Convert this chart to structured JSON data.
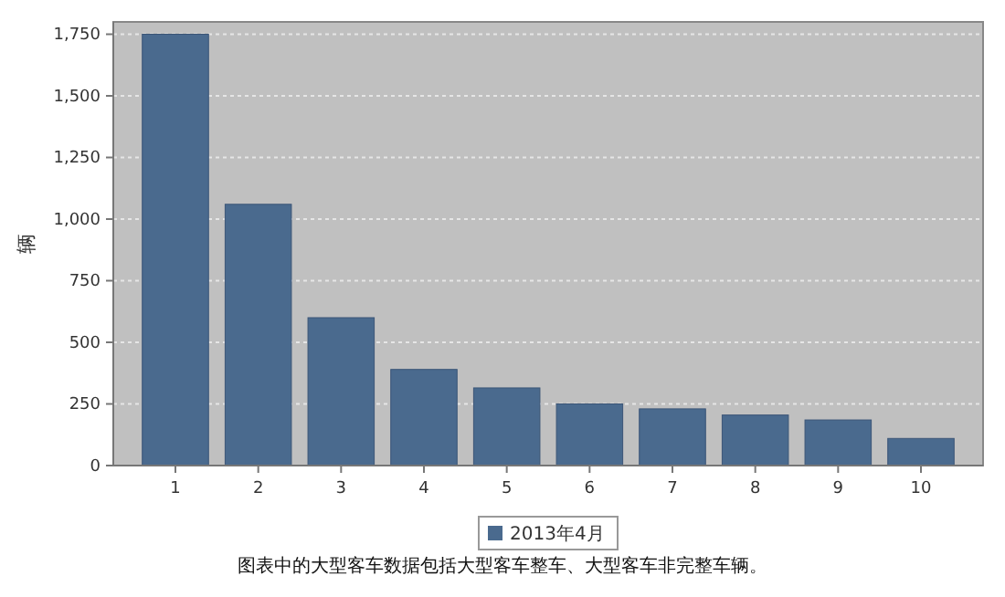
{
  "chart_data": {
    "type": "bar",
    "ylabel": "辆",
    "categories": [
      "1",
      "2",
      "3",
      "4",
      "5",
      "6",
      "7",
      "8",
      "9",
      "10"
    ],
    "series": [
      {
        "name": "2013年4月",
        "color": "#4a6a8e",
        "values": [
          1750,
          1060,
          600,
          390,
          315,
          250,
          230,
          205,
          185,
          110
        ]
      }
    ],
    "ylim": [
      0,
      1800
    ],
    "yticks": [
      0,
      {
        "value": 250,
        "label": "250"
      },
      {
        "value": 500,
        "label": "500"
      },
      {
        "value": 750,
        "label": "750"
      },
      {
        "value": 1000,
        "label": "1,000"
      },
      {
        "value": 1250,
        "label": "1,250"
      },
      {
        "value": 1500,
        "label": "1,500"
      },
      {
        "value": 1750,
        "label": "1,750"
      }
    ],
    "grid": "y",
    "legend": "bottom",
    "annotations": [
      "图表中的大型客车数据包括大型客车整车、大型客车非完整车辆。"
    ]
  }
}
